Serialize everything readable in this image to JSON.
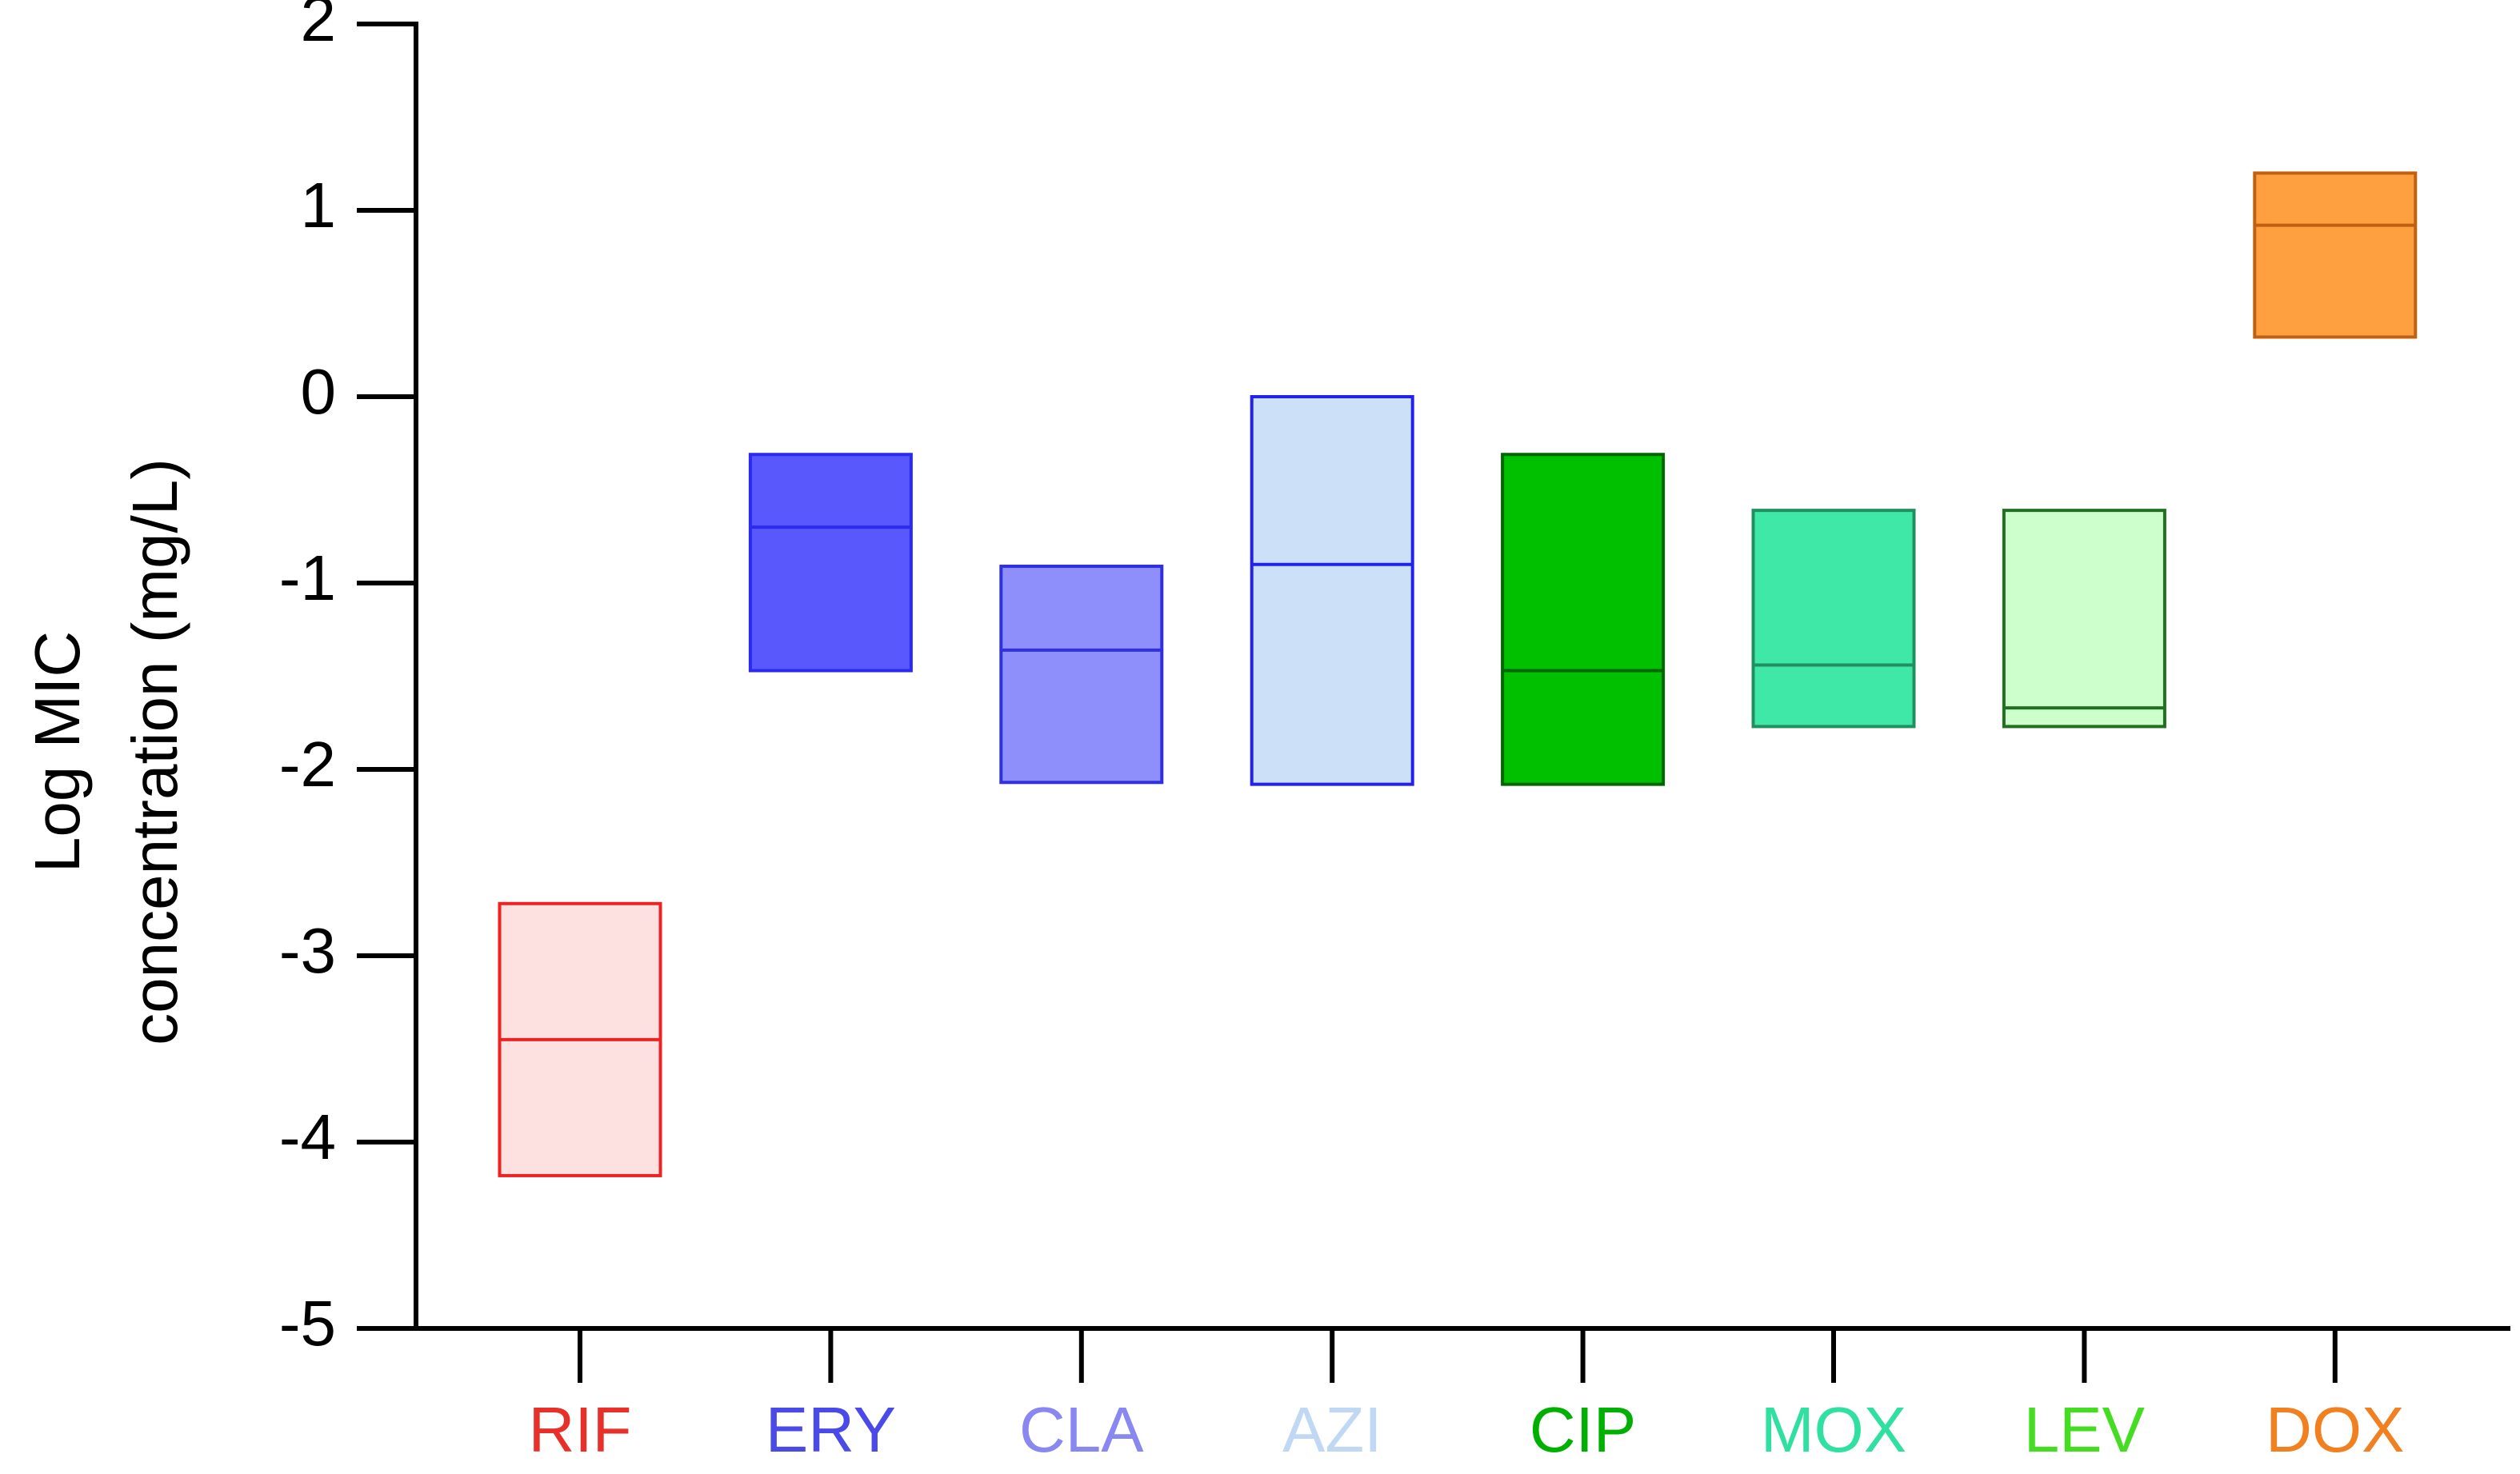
{
  "chart_data": {
    "type": "floating_bar",
    "ylabel": [
      "Log MIC",
      "concentration (mg/L)"
    ],
    "categories": [
      "RIF",
      "ERY",
      "CLA",
      "AZI",
      "CIP",
      "MOX",
      "LEV",
      "DOX"
    ],
    "min": [
      -4.18,
      -1.47,
      -2.07,
      -2.08,
      -2.08,
      -1.77,
      -1.77,
      0.32
    ],
    "median": [
      -3.45,
      -0.7,
      -1.36,
      -0.9,
      -1.47,
      -1.44,
      -1.67,
      0.92
    ],
    "max": [
      -2.72,
      -0.31,
      -0.91,
      0,
      -0.31,
      -0.61,
      -0.61,
      1.2
    ],
    "colors": [
      "#fde0e0",
      "#5858fc",
      "#8f8ffc",
      "#cce0f8",
      "#00c000",
      "#40e8a8",
      "#ccffcc",
      "#ffa040"
    ],
    "edge_colors": [
      "#ee2222",
      "#2a2af0",
      "#3030e0",
      "#2222ee",
      "#006600",
      "#209060",
      "#207020",
      "#c06010"
    ],
    "label_colors": [
      "#e8302a",
      "#4a4ae8",
      "#8888f0",
      "#c0d8f4",
      "#00b000",
      "#30e0a0",
      "#44dd22",
      "#f08020"
    ],
    "ylim": [
      -5,
      2
    ],
    "yticks": [
      -5,
      -4,
      -3,
      -2,
      -1,
      0,
      1,
      2
    ]
  }
}
